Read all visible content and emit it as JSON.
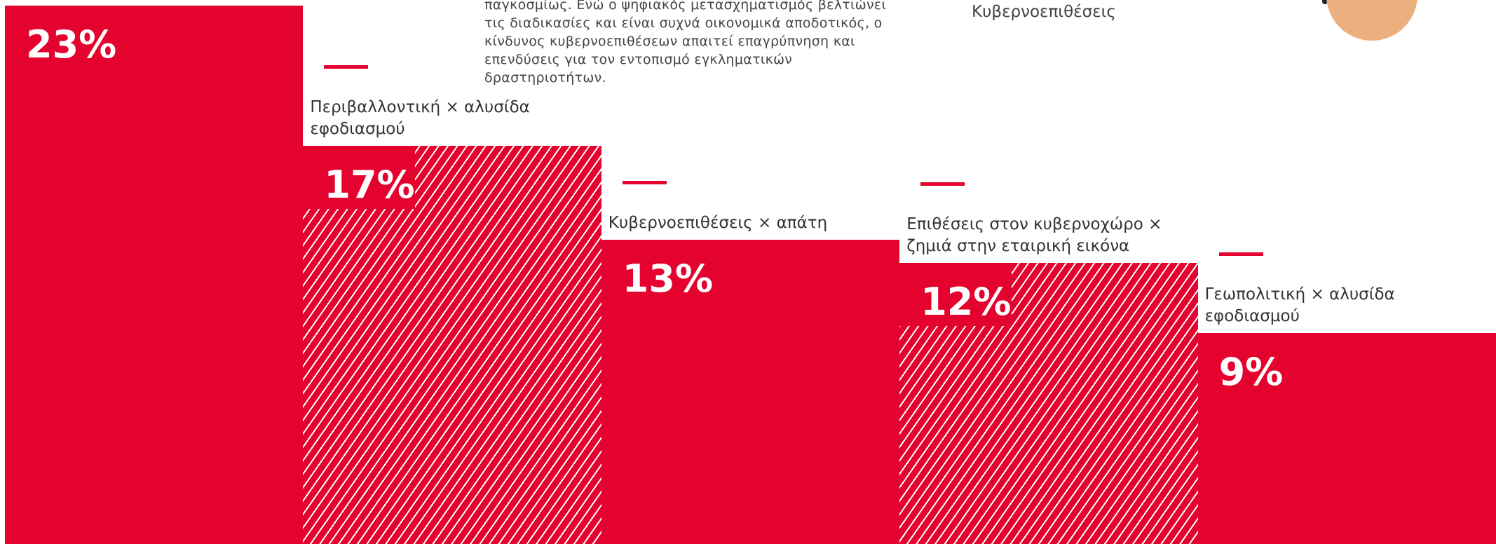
{
  "chart_data": {
    "type": "bar",
    "categories": [
      null,
      "Περιβαλλοντική × αλυσίδα εφοδιασμού",
      "Κυβερνοεπιθέσεις × απάτη",
      "Επιθέσεις στον κυβερνοχώρο × ζημιά στην εταιρική εικόνα",
      "Γεωπολιτική × αλυσίδα εφοδιασμού"
    ],
    "values": [
      23,
      17,
      13,
      12,
      9
    ],
    "value_labels": [
      "23%",
      "17%",
      "13%",
      "12%",
      "9%"
    ],
    "hatched": [
      false,
      true,
      false,
      true,
      false
    ],
    "color": "#e4032e"
  },
  "description": {
    "lines": [
      "παγκοσμίως. Ενώ ο ψηφιακός μετασχηματισμός βελτιώνει",
      "τις διαδικασίες και είναι συχνά οικονομικά αποδοτικός, ο",
      "κίνδυνος κυβερνοεπιθέσεων απαιτεί επαγρύπνηση και",
      "επενδύσεις για τον εντοπισμό εγκληματικών",
      "δραστηριοτήτων."
    ]
  },
  "legend_label": "Κυβερνοεπιθέσεις"
}
